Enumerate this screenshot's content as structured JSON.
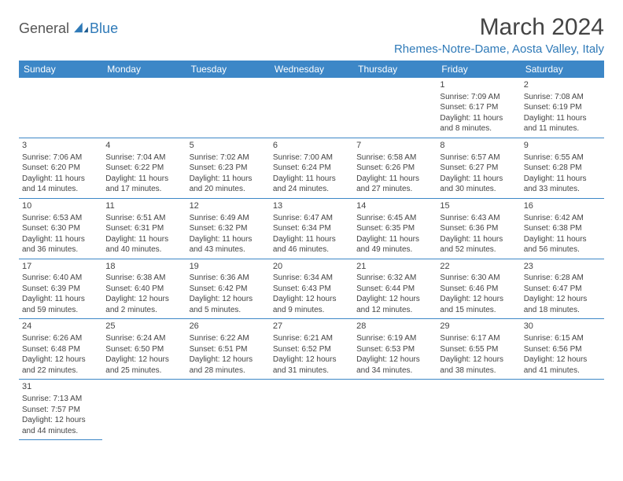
{
  "logo": {
    "general": "General",
    "blue": "Blue"
  },
  "title": "March 2024",
  "location": "Rhemes-Notre-Dame, Aosta Valley, Italy",
  "weekdays": [
    "Sunday",
    "Monday",
    "Tuesday",
    "Wednesday",
    "Thursday",
    "Friday",
    "Saturday"
  ],
  "colors": {
    "header_bg": "#3d87c7",
    "accent": "#2f7ab8",
    "text": "#444444",
    "background": "#ffffff"
  },
  "typography": {
    "title_fontsize": 30,
    "location_fontsize": 15,
    "weekday_fontsize": 12,
    "cell_fontsize": 10
  },
  "grid": [
    [
      null,
      null,
      null,
      null,
      null,
      {
        "d": "1",
        "sr": "Sunrise: 7:09 AM",
        "ss": "Sunset: 6:17 PM",
        "dl": "Daylight: 11 hours and 8 minutes."
      },
      {
        "d": "2",
        "sr": "Sunrise: 7:08 AM",
        "ss": "Sunset: 6:19 PM",
        "dl": "Daylight: 11 hours and 11 minutes."
      }
    ],
    [
      {
        "d": "3",
        "sr": "Sunrise: 7:06 AM",
        "ss": "Sunset: 6:20 PM",
        "dl": "Daylight: 11 hours and 14 minutes."
      },
      {
        "d": "4",
        "sr": "Sunrise: 7:04 AM",
        "ss": "Sunset: 6:22 PM",
        "dl": "Daylight: 11 hours and 17 minutes."
      },
      {
        "d": "5",
        "sr": "Sunrise: 7:02 AM",
        "ss": "Sunset: 6:23 PM",
        "dl": "Daylight: 11 hours and 20 minutes."
      },
      {
        "d": "6",
        "sr": "Sunrise: 7:00 AM",
        "ss": "Sunset: 6:24 PM",
        "dl": "Daylight: 11 hours and 24 minutes."
      },
      {
        "d": "7",
        "sr": "Sunrise: 6:58 AM",
        "ss": "Sunset: 6:26 PM",
        "dl": "Daylight: 11 hours and 27 minutes."
      },
      {
        "d": "8",
        "sr": "Sunrise: 6:57 AM",
        "ss": "Sunset: 6:27 PM",
        "dl": "Daylight: 11 hours and 30 minutes."
      },
      {
        "d": "9",
        "sr": "Sunrise: 6:55 AM",
        "ss": "Sunset: 6:28 PM",
        "dl": "Daylight: 11 hours and 33 minutes."
      }
    ],
    [
      {
        "d": "10",
        "sr": "Sunrise: 6:53 AM",
        "ss": "Sunset: 6:30 PM",
        "dl": "Daylight: 11 hours and 36 minutes."
      },
      {
        "d": "11",
        "sr": "Sunrise: 6:51 AM",
        "ss": "Sunset: 6:31 PM",
        "dl": "Daylight: 11 hours and 40 minutes."
      },
      {
        "d": "12",
        "sr": "Sunrise: 6:49 AM",
        "ss": "Sunset: 6:32 PM",
        "dl": "Daylight: 11 hours and 43 minutes."
      },
      {
        "d": "13",
        "sr": "Sunrise: 6:47 AM",
        "ss": "Sunset: 6:34 PM",
        "dl": "Daylight: 11 hours and 46 minutes."
      },
      {
        "d": "14",
        "sr": "Sunrise: 6:45 AM",
        "ss": "Sunset: 6:35 PM",
        "dl": "Daylight: 11 hours and 49 minutes."
      },
      {
        "d": "15",
        "sr": "Sunrise: 6:43 AM",
        "ss": "Sunset: 6:36 PM",
        "dl": "Daylight: 11 hours and 52 minutes."
      },
      {
        "d": "16",
        "sr": "Sunrise: 6:42 AM",
        "ss": "Sunset: 6:38 PM",
        "dl": "Daylight: 11 hours and 56 minutes."
      }
    ],
    [
      {
        "d": "17",
        "sr": "Sunrise: 6:40 AM",
        "ss": "Sunset: 6:39 PM",
        "dl": "Daylight: 11 hours and 59 minutes."
      },
      {
        "d": "18",
        "sr": "Sunrise: 6:38 AM",
        "ss": "Sunset: 6:40 PM",
        "dl": "Daylight: 12 hours and 2 minutes."
      },
      {
        "d": "19",
        "sr": "Sunrise: 6:36 AM",
        "ss": "Sunset: 6:42 PM",
        "dl": "Daylight: 12 hours and 5 minutes."
      },
      {
        "d": "20",
        "sr": "Sunrise: 6:34 AM",
        "ss": "Sunset: 6:43 PM",
        "dl": "Daylight: 12 hours and 9 minutes."
      },
      {
        "d": "21",
        "sr": "Sunrise: 6:32 AM",
        "ss": "Sunset: 6:44 PM",
        "dl": "Daylight: 12 hours and 12 minutes."
      },
      {
        "d": "22",
        "sr": "Sunrise: 6:30 AM",
        "ss": "Sunset: 6:46 PM",
        "dl": "Daylight: 12 hours and 15 minutes."
      },
      {
        "d": "23",
        "sr": "Sunrise: 6:28 AM",
        "ss": "Sunset: 6:47 PM",
        "dl": "Daylight: 12 hours and 18 minutes."
      }
    ],
    [
      {
        "d": "24",
        "sr": "Sunrise: 6:26 AM",
        "ss": "Sunset: 6:48 PM",
        "dl": "Daylight: 12 hours and 22 minutes."
      },
      {
        "d": "25",
        "sr": "Sunrise: 6:24 AM",
        "ss": "Sunset: 6:50 PM",
        "dl": "Daylight: 12 hours and 25 minutes."
      },
      {
        "d": "26",
        "sr": "Sunrise: 6:22 AM",
        "ss": "Sunset: 6:51 PM",
        "dl": "Daylight: 12 hours and 28 minutes."
      },
      {
        "d": "27",
        "sr": "Sunrise: 6:21 AM",
        "ss": "Sunset: 6:52 PM",
        "dl": "Daylight: 12 hours and 31 minutes."
      },
      {
        "d": "28",
        "sr": "Sunrise: 6:19 AM",
        "ss": "Sunset: 6:53 PM",
        "dl": "Daylight: 12 hours and 34 minutes."
      },
      {
        "d": "29",
        "sr": "Sunrise: 6:17 AM",
        "ss": "Sunset: 6:55 PM",
        "dl": "Daylight: 12 hours and 38 minutes."
      },
      {
        "d": "30",
        "sr": "Sunrise: 6:15 AM",
        "ss": "Sunset: 6:56 PM",
        "dl": "Daylight: 12 hours and 41 minutes."
      }
    ],
    [
      {
        "d": "31",
        "sr": "Sunrise: 7:13 AM",
        "ss": "Sunset: 7:57 PM",
        "dl": "Daylight: 12 hours and 44 minutes."
      },
      null,
      null,
      null,
      null,
      null,
      null
    ]
  ]
}
